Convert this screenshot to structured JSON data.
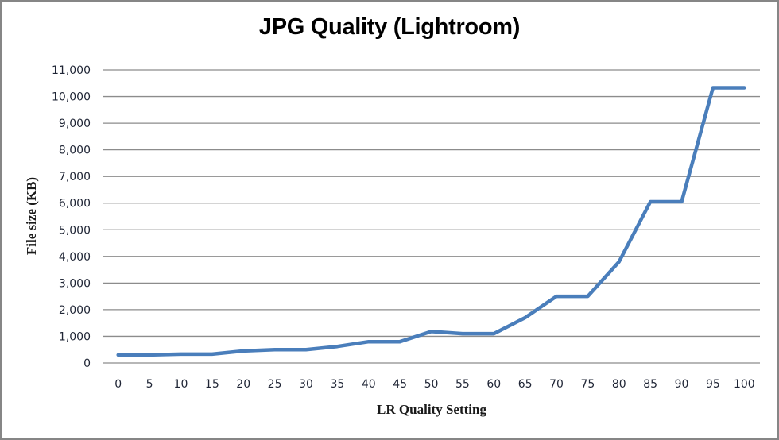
{
  "chart_data": {
    "type": "line",
    "title": "JPG Quality (Lightroom)",
    "xlabel": "LR Quality Setting",
    "ylabel": "File size (KB)",
    "categories": [
      "0",
      "5",
      "10",
      "15",
      "20",
      "25",
      "30",
      "35",
      "40",
      "45",
      "50",
      "55",
      "60",
      "65",
      "70",
      "75",
      "80",
      "85",
      "90",
      "95",
      "100"
    ],
    "series": [
      {
        "name": "File size (KB)",
        "color": "#4a7ebb",
        "values": [
          300,
          300,
          330,
          330,
          450,
          500,
          500,
          620,
          800,
          800,
          1180,
          1100,
          1100,
          1700,
          2500,
          2500,
          3800,
          6050,
          6050,
          10330,
          10330
        ]
      }
    ],
    "ylim": [
      0,
      11000
    ],
    "yticks": [
      0,
      1000,
      2000,
      3000,
      4000,
      5000,
      6000,
      7000,
      8000,
      9000,
      10000,
      11000
    ],
    "ytick_labels": [
      "0",
      "1,000",
      "2,000",
      "3,000",
      "4,000",
      "5,000",
      "6,000",
      "7,000",
      "8,000",
      "9,000",
      "10,000",
      "11,000"
    ],
    "grid": true,
    "legend": "none"
  }
}
